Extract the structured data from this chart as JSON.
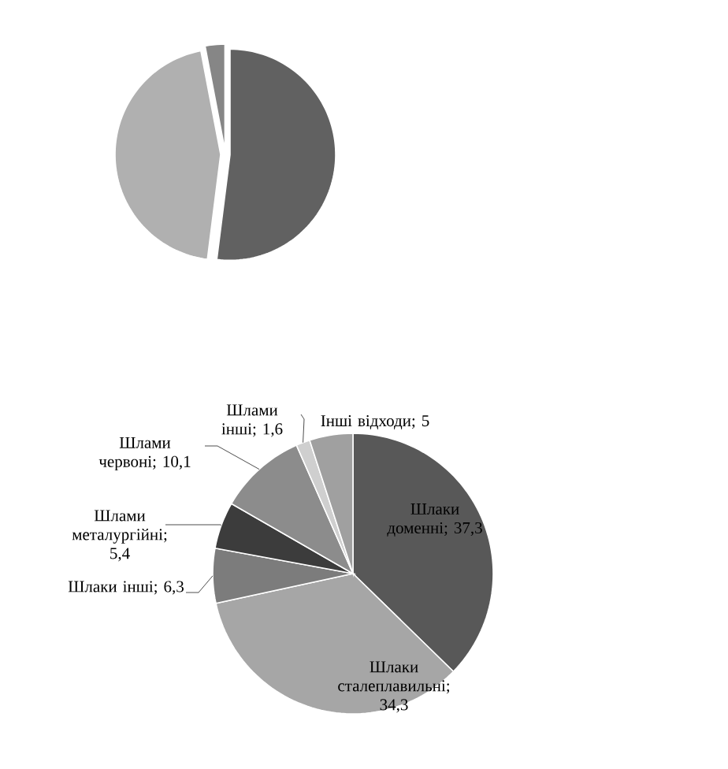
{
  "chart_data": [
    {
      "type": "pie",
      "categories": [
        null,
        null,
        null
      ],
      "values": [
        52,
        45,
        3
      ],
      "colors": [
        "#616161",
        "#b0b0b0",
        "#868686"
      ]
    },
    {
      "type": "pie",
      "categories": [
        "Шлаки доменні",
        "Шлаки сталеплавильні",
        "Шлаки інші",
        "Шлами металургійні",
        "Шлами червоні",
        "Шлами інші",
        "Інші відходи"
      ],
      "values": [
        37.3,
        34.3,
        6.3,
        5.4,
        10.1,
        1.6,
        5
      ],
      "colors": [
        "#585858",
        "#a6a6a6",
        "#7c7c7c",
        "#3c3c3c",
        "#8c8c8c",
        "#cfcfcf",
        "#a0a0a0"
      ],
      "value_labels": [
        "; 37,3",
        "; 34,3",
        "; 6,3",
        "; 5,4",
        "; 10,1",
        "; 1,6",
        "; 5"
      ]
    }
  ]
}
